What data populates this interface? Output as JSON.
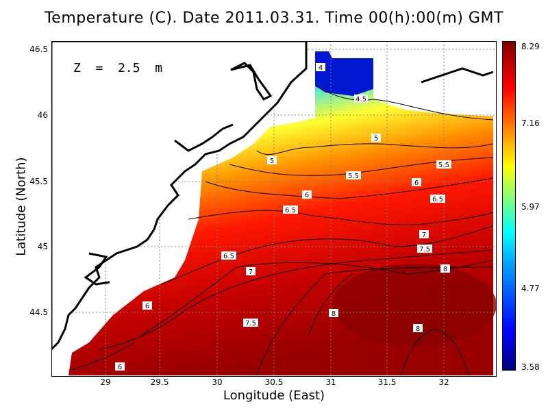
{
  "title": "Temperature (C). Date 2011.03.31. Time 00(h):00(m) GMT",
  "depth_label": "Z  =  2.5  m",
  "xlabel": "Longitude (East)",
  "ylabel": "Latitude (North)",
  "x_ticks": [
    "29",
    "29.5",
    "30",
    "30.5",
    "31",
    "31.5",
    "32"
  ],
  "y_ticks": [
    "46.5",
    "46",
    "45.5",
    "45",
    "44.5"
  ],
  "colorbar": {
    "ticks": [
      "8.29",
      "7.16",
      "5.97",
      "4.77",
      "3.58"
    ],
    "min": 3.58,
    "max": 8.29
  },
  "contour_labels": [
    "4",
    "4.5",
    "5",
    "5",
    "5.5",
    "5.5",
    "6",
    "6",
    "6.5",
    "6.5",
    "6.5",
    "7",
    "7",
    "7.5",
    "7.5",
    "8",
    "8",
    "8",
    "6",
    "6"
  ],
  "colors": {
    "cold": "#0000c8",
    "mid": "#ffff00",
    "warm": "#b00000",
    "land": "#ffffff"
  },
  "chart_data": {
    "type": "heatmap",
    "variable": "Temperature (C)",
    "xlim": [
      28.55,
      32.45
    ],
    "ylim": [
      44.05,
      46.55
    ],
    "clim": [
      3.58,
      8.29
    ],
    "grid": true
  }
}
